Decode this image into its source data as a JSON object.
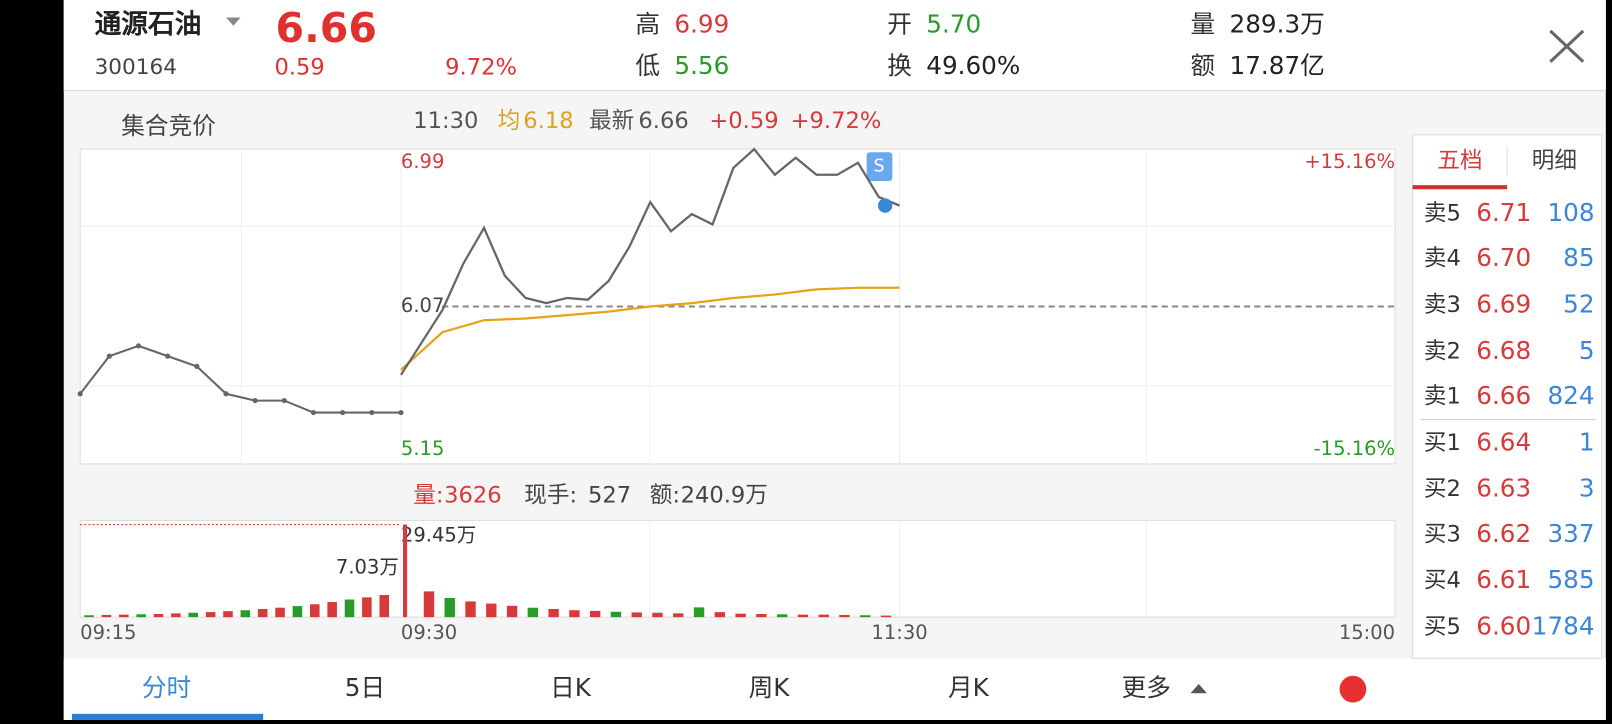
{
  "header": {
    "name": "通源石油",
    "code": "300164",
    "price": "6.66",
    "change": "0.59",
    "change_pct": "9.72%",
    "stats": [
      {
        "label": "高",
        "value": "6.99"
      },
      {
        "label": "低",
        "value": "5.56"
      },
      {
        "label": "开",
        "value": "5.70"
      },
      {
        "label": "换",
        "value": "49.60%"
      },
      {
        "label": "量",
        "value": "289.3万"
      },
      {
        "label": "额",
        "value": "17.87亿"
      }
    ]
  },
  "chart": {
    "auction_label": "集合竞价",
    "info": {
      "time": "11:30",
      "avg_label": "均",
      "avg": "6.18",
      "latest_label": "最新",
      "latest": "6.66",
      "change": "+0.59",
      "change_pct": "+9.72%"
    },
    "ylim": [
      5.15,
      6.99
    ],
    "ref": 6.07,
    "pct_top": "+15.16%",
    "pct_bottom": "-15.16%",
    "auction_prices": [
      5.56,
      5.78,
      5.84,
      5.78,
      5.72,
      5.56,
      5.52,
      5.52,
      5.45,
      5.45,
      5.45,
      5.45
    ],
    "prices": [
      5.67,
      5.86,
      6.05,
      6.32,
      6.53,
      6.25,
      6.12,
      6.09,
      6.12,
      6.11,
      6.22,
      6.42,
      6.68,
      6.51,
      6.61,
      6.55,
      6.88,
      6.99,
      6.84,
      6.94,
      6.84,
      6.84,
      6.91,
      6.71,
      6.66
    ],
    "avg_prices": [
      5.7,
      5.92,
      5.99,
      6.0,
      6.02,
      6.04,
      6.07,
      6.09,
      6.12,
      6.14,
      6.17,
      6.18,
      6.18
    ],
    "volume_info": [
      {
        "label": "量:",
        "value": "3626"
      },
      {
        "label": "现手:",
        "value": "527"
      },
      {
        "label": "额:",
        "value": "240.9万"
      }
    ],
    "vol_max": {
      "value": 29.45,
      "label": "29.45万"
    },
    "auction_peak_label": "7.03万",
    "auction_volumes": [
      0.6,
      0.7,
      0.8,
      0.9,
      1.0,
      1.2,
      1.4,
      1.6,
      1.9,
      2.2,
      2.6,
      3.0,
      3.5,
      4.1,
      4.8,
      5.6,
      6.3,
      7.03
    ],
    "volumes": [
      29.45,
      8.2,
      6.1,
      5.0,
      4.3,
      3.6,
      3.0,
      2.6,
      2.2,
      2.0,
      1.7,
      1.5,
      1.4,
      1.2,
      3.1,
      1.6,
      1.1,
      1.0,
      0.9,
      0.8,
      0.8,
      0.7,
      0.6,
      0.5
    ],
    "times": [
      "09:15",
      "09:30",
      "11:30",
      "15:00"
    ]
  },
  "order_book": {
    "tabs": [
      "五档",
      "明细"
    ],
    "asks": [
      {
        "label": "卖5",
        "price": "6.71",
        "volume": "108"
      },
      {
        "label": "卖4",
        "price": "6.70",
        "volume": "85"
      },
      {
        "label": "卖3",
        "price": "6.69",
        "volume": "52"
      },
      {
        "label": "卖2",
        "price": "6.68",
        "volume": "5"
      },
      {
        "label": "卖1",
        "price": "6.66",
        "volume": "824"
      }
    ],
    "bids": [
      {
        "label": "买1",
        "price": "6.64",
        "volume": "1"
      },
      {
        "label": "买2",
        "price": "6.63",
        "volume": "3"
      },
      {
        "label": "买3",
        "price": "6.62",
        "volume": "337"
      },
      {
        "label": "买4",
        "price": "6.61",
        "volume": "585"
      },
      {
        "label": "买5",
        "price": "6.60",
        "volume": "1784"
      }
    ]
  },
  "tabs": [
    "分时",
    "5日",
    "日K",
    "周K",
    "月K",
    "更多"
  ]
}
